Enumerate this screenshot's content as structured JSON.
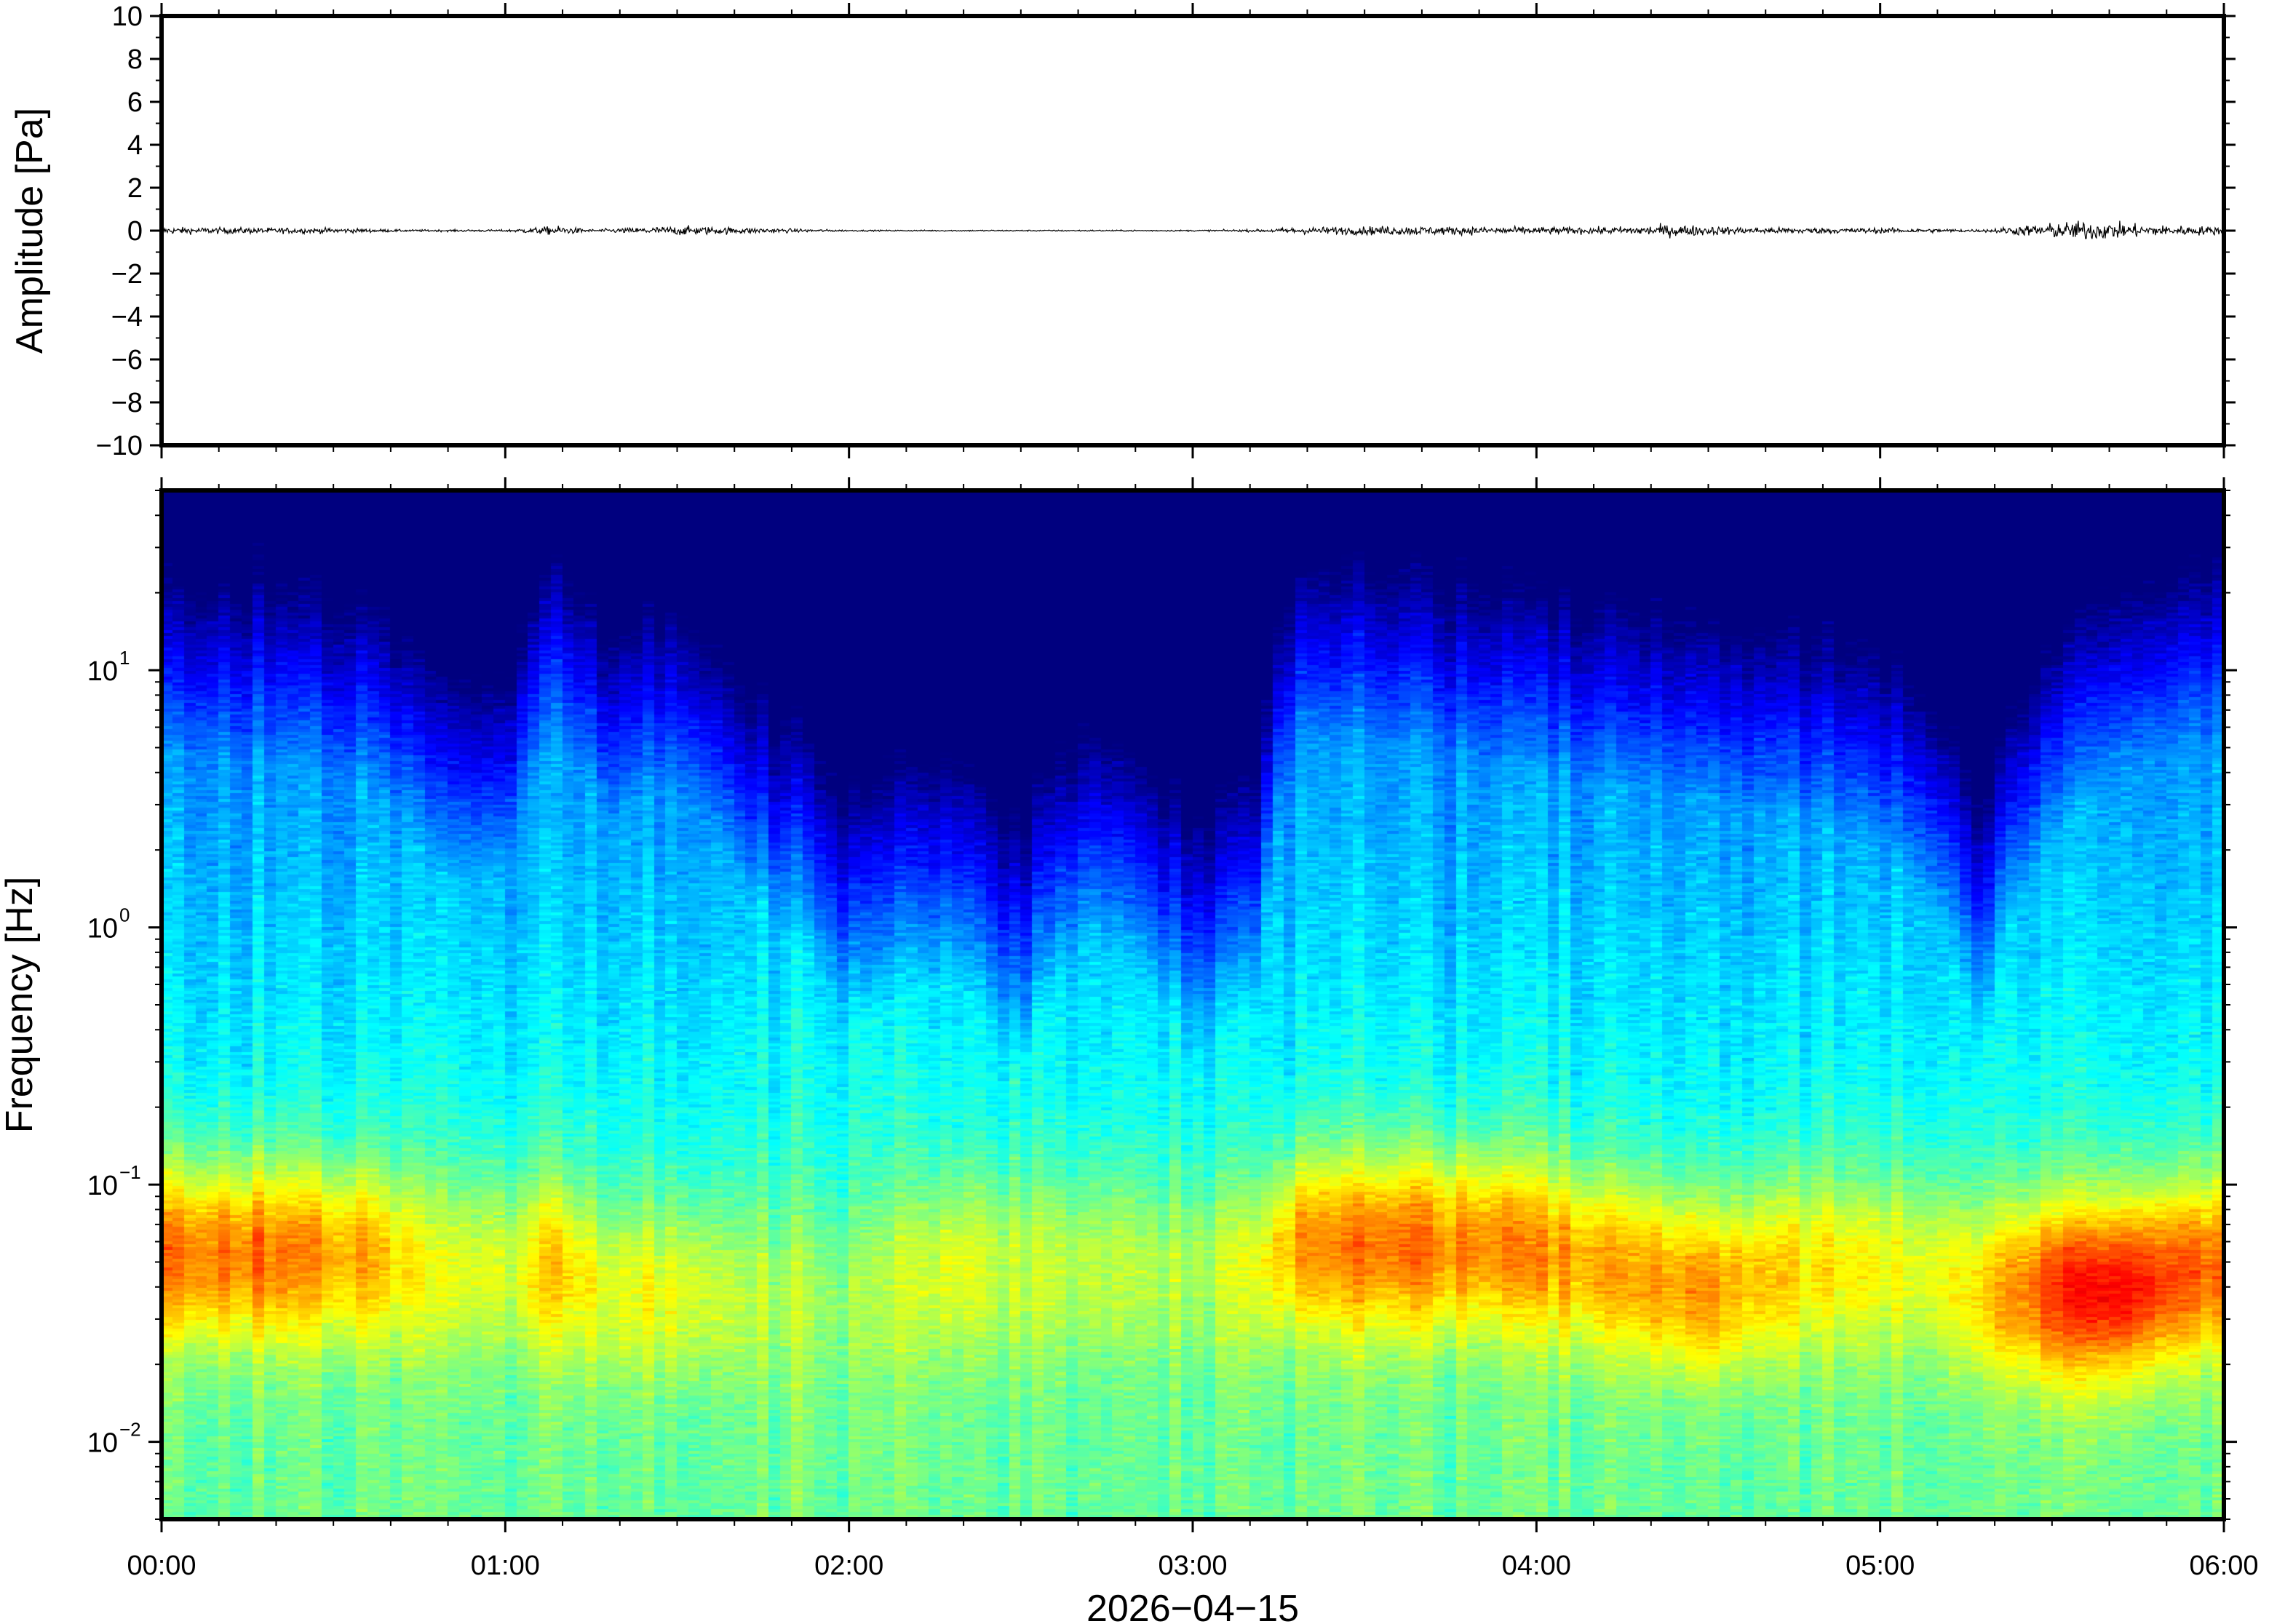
{
  "chart_data": [
    {
      "type": "line",
      "name": "waveform",
      "ylabel": "Amplitude [Pa]",
      "ylim": [
        -10,
        10
      ],
      "yticks": [
        10,
        8,
        6,
        4,
        2,
        0,
        -2,
        -4,
        -6,
        -8,
        -10
      ],
      "ytick_labels": [
        "10",
        "8",
        "6",
        "4",
        "2",
        "0",
        "−2",
        "−4",
        "−6",
        "−8",
        "−10"
      ],
      "xlim_hours": [
        0,
        6
      ],
      "grid": false,
      "trace_color": "#000000",
      "noise_envelope": {
        "hours": [
          0.0,
          0.5,
          0.7,
          1.0,
          1.15,
          1.25,
          1.5,
          2.0,
          2.5,
          3.0,
          3.2,
          3.3,
          3.6,
          3.8,
          4.2,
          4.4,
          4.6,
          5.0,
          5.3,
          5.4,
          5.6,
          5.8,
          6.0
        ],
        "amplitude_pa": [
          0.25,
          0.2,
          0.08,
          0.08,
          0.35,
          0.1,
          0.35,
          0.05,
          0.05,
          0.05,
          0.1,
          0.25,
          0.35,
          0.3,
          0.25,
          0.45,
          0.25,
          0.2,
          0.1,
          0.35,
          0.75,
          0.4,
          0.3
        ]
      }
    },
    {
      "type": "heatmap",
      "name": "spectrogram",
      "ylabel": "Frequency [Hz]",
      "y_scale": "log",
      "ylim_hz": [
        0.005,
        50
      ],
      "yticks_hz": [
        10,
        1,
        0.1,
        0.01
      ],
      "ytick_labels": [
        {
          "base": "10",
          "exp": "1"
        },
        {
          "base": "10",
          "exp": "0"
        },
        {
          "base": "10",
          "exp": "−1"
        },
        {
          "base": "10",
          "exp": "−2"
        }
      ],
      "xlabel": "2026−04−15",
      "xlim_hours": [
        0,
        6
      ],
      "xtick_labels": [
        "00:00",
        "01:00",
        "02:00",
        "03:00",
        "04:00",
        "05:00",
        "06:00"
      ],
      "colormap": "jet",
      "colormap_colors": [
        "#00007f",
        "#0000ff",
        "#007fff",
        "#00ffff",
        "#7fff7f",
        "#ffff00",
        "#ff7f00",
        "#ff0000",
        "#7f0000"
      ],
      "power_profile": {
        "description_keys": [
          "hours",
          "floor_hz",
          "band_hz",
          "band_strength"
        ],
        "hours": [
          0.0,
          0.3,
          0.6,
          0.8,
          1.0,
          1.15,
          1.3,
          1.5,
          1.7,
          2.0,
          2.3,
          2.5,
          2.7,
          3.0,
          3.2,
          3.3,
          3.6,
          3.9,
          4.2,
          4.5,
          4.8,
          5.1,
          5.3,
          5.5,
          5.7,
          6.0
        ],
        "noise_top_hz": [
          18,
          18,
          14,
          6,
          6,
          22,
          10,
          14,
          5,
          1.5,
          2.5,
          1.0,
          3.5,
          1.2,
          2.0,
          20,
          20,
          16,
          14,
          12,
          10,
          6,
          1.0,
          8,
          16,
          22
        ],
        "band_hz": [
          0.055,
          0.055,
          0.055,
          0.05,
          0.05,
          0.05,
          0.04,
          0.04,
          0.04,
          0.04,
          0.05,
          0.05,
          0.05,
          0.05,
          0.05,
          0.06,
          0.06,
          0.06,
          0.05,
          0.04,
          0.05,
          0.05,
          0.04,
          0.04,
          0.04,
          0.05
        ],
        "band_strength": [
          0.72,
          0.72,
          0.66,
          0.55,
          0.55,
          0.62,
          0.55,
          0.56,
          0.5,
          0.46,
          0.55,
          0.52,
          0.52,
          0.5,
          0.56,
          0.68,
          0.72,
          0.7,
          0.66,
          0.68,
          0.6,
          0.56,
          0.6,
          0.76,
          0.82,
          0.7
        ]
      }
    }
  ]
}
